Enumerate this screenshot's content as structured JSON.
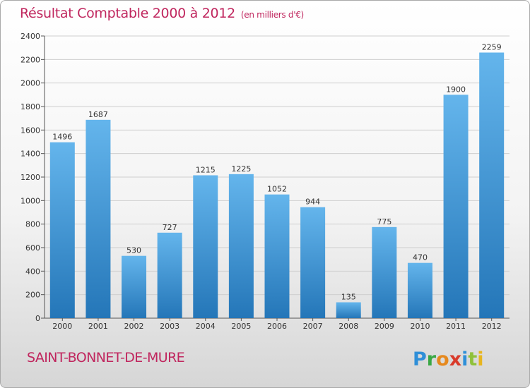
{
  "title": "Résultat Comptable 2000 à 2012",
  "subtitle": "(en milliers d'€)",
  "commune": "SAINT-BONNET-DE-MURE",
  "logo_text": "Proxiti",
  "colors": {
    "bar_light": "#64b5ec",
    "bar_dark": "#2476b8",
    "title": "#c0265e"
  },
  "chart_data": {
    "type": "bar",
    "categories": [
      "2000",
      "2001",
      "2002",
      "2003",
      "2004",
      "2005",
      "2006",
      "2007",
      "2008",
      "2009",
      "2010",
      "2011",
      "2012"
    ],
    "values": [
      1496,
      1687,
      530,
      727,
      1215,
      1225,
      1052,
      944,
      135,
      775,
      470,
      1900,
      2259
    ],
    "ylim": [
      0,
      2400
    ],
    "yticks": [
      0,
      200,
      400,
      600,
      800,
      1000,
      1200,
      1400,
      1600,
      1800,
      2000,
      2200,
      2400
    ],
    "grid": true,
    "data_labels": true
  }
}
